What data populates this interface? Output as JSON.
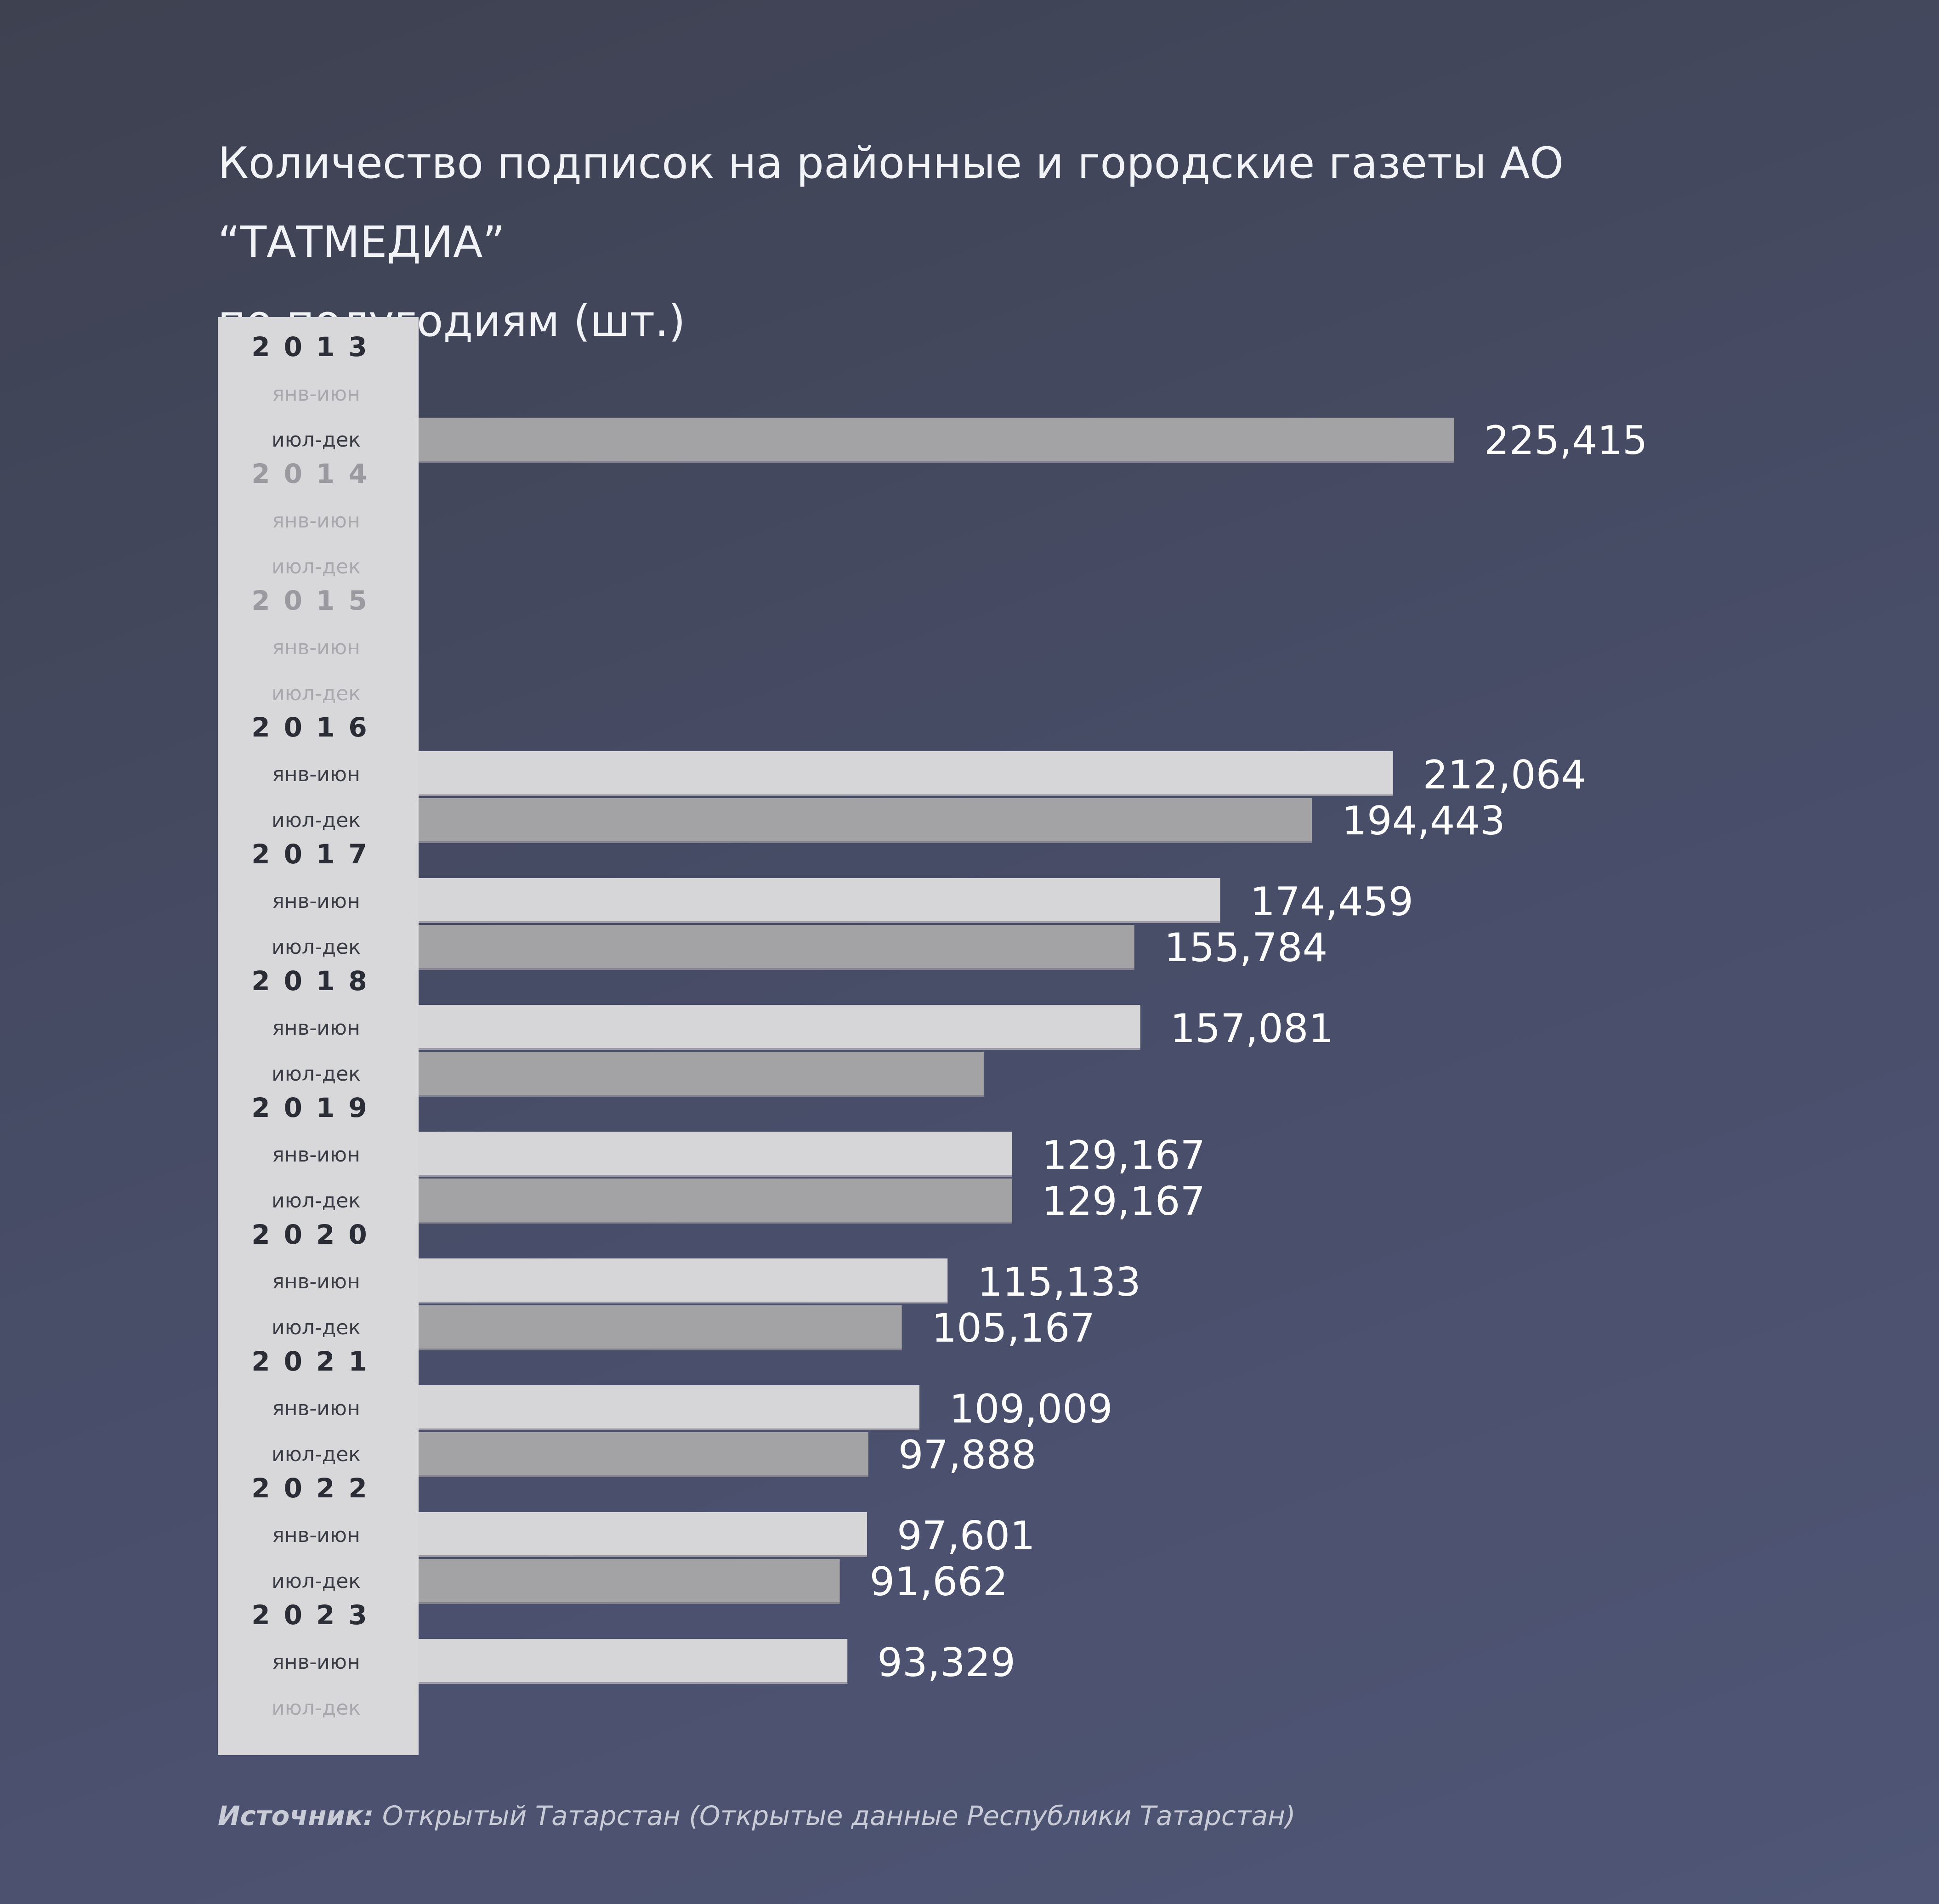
{
  "title_lines": [
    "Количество подписок на районные и городские газеты АО “ТАТМЕДИА”",
    "по полугодиям (шт.)"
  ],
  "source": {
    "label": "Источник:",
    "text": "Открытый Татарстан (Открытые данные Республики Татарстан)"
  },
  "colors": {
    "first_half_bar": "#d6d6d9",
    "second_half_bar": "#a3a3a6",
    "year_label": "#2b2d36",
    "year_label_empty": "#9a9aa0",
    "period_label": "#3a3c45",
    "period_label_empty": "#a8a8ad",
    "label_panel": "#d8d8db",
    "value_label": "#ffffff"
  },
  "chart_data": {
    "type": "bar",
    "orientation": "horizontal",
    "title": "Количество подписок на районные и городские газеты АО “ТАТМЕДИА” по полугодиям (шт.)",
    "xlim": [
      0,
      225415
    ],
    "grid": false,
    "years": [
      {
        "year": "2013",
        "periods": [
          {
            "label": "янв-июн",
            "value": null,
            "value_label": ""
          },
          {
            "label": "июл-дек",
            "value": 225415,
            "value_label": "225,415"
          }
        ]
      },
      {
        "year": "2014",
        "periods": [
          {
            "label": "янв-июн",
            "value": null,
            "value_label": ""
          },
          {
            "label": "июл-дек",
            "value": null,
            "value_label": ""
          }
        ]
      },
      {
        "year": "2015",
        "periods": [
          {
            "label": "янв-июн",
            "value": null,
            "value_label": ""
          },
          {
            "label": "июл-дек",
            "value": null,
            "value_label": ""
          }
        ]
      },
      {
        "year": "2016",
        "periods": [
          {
            "label": "янв-июн",
            "value": 212064,
            "value_label": "212,064"
          },
          {
            "label": "июл-дек",
            "value": 194443,
            "value_label": "194,443"
          }
        ]
      },
      {
        "year": "2017",
        "periods": [
          {
            "label": "янв-июн",
            "value": 174459,
            "value_label": "174,459"
          },
          {
            "label": "июл-дек",
            "value": 155784,
            "value_label": "155,784"
          }
        ]
      },
      {
        "year": "2018",
        "periods": [
          {
            "label": "янв-июн",
            "value": 157081,
            "value_label": "157,081"
          },
          {
            "label": "июл-дек",
            "value": 123000,
            "value_label": ""
          }
        ]
      },
      {
        "year": "2019",
        "periods": [
          {
            "label": "янв-июн",
            "value": 129167,
            "value_label": "129,167"
          },
          {
            "label": "июл-дек",
            "value": 129167,
            "value_label": "129,167"
          }
        ]
      },
      {
        "year": "2020",
        "periods": [
          {
            "label": "янв-июн",
            "value": 115133,
            "value_label": "115,133"
          },
          {
            "label": "июл-дек",
            "value": 105167,
            "value_label": "105,167"
          }
        ]
      },
      {
        "year": "2021",
        "periods": [
          {
            "label": "янв-июн",
            "value": 109009,
            "value_label": "109,009"
          },
          {
            "label": "июл-дек",
            "value": 97888,
            "value_label": "97,888"
          }
        ]
      },
      {
        "year": "2022",
        "periods": [
          {
            "label": "янв-июн",
            "value": 97601,
            "value_label": "97,601"
          },
          {
            "label": "июл-дек",
            "value": 91662,
            "value_label": "91,662"
          }
        ]
      },
      {
        "year": "2023",
        "periods": [
          {
            "label": "янв-июн",
            "value": 93329,
            "value_label": "93,329"
          },
          {
            "label": "июл-дек",
            "value": null,
            "value_label": ""
          }
        ]
      }
    ]
  }
}
